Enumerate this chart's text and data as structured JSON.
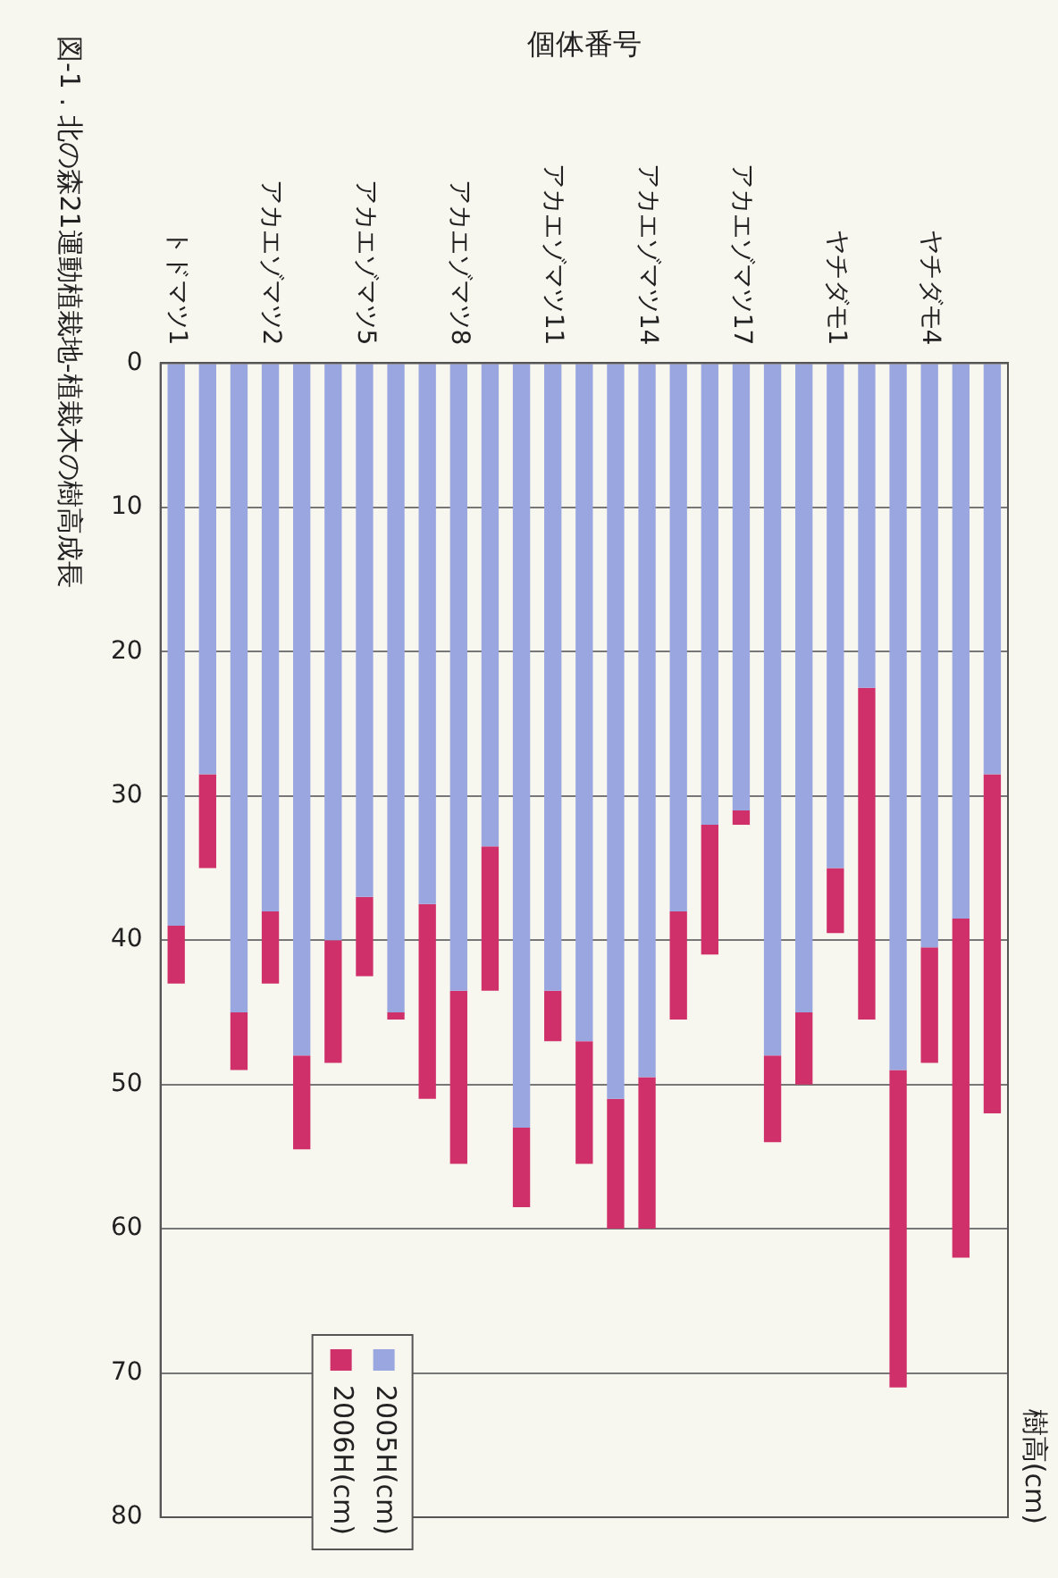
{
  "chart_data": {
    "type": "bar",
    "title": "図-1 . 北の森21運動植栽地-植栽木の樹高成長",
    "xlabel": "個体番号",
    "ylabel": "樹高(cm)",
    "categories": [
      "トドマツ1",
      null,
      null,
      "アカエゾマツ2",
      null,
      null,
      "アカエゾマツ5",
      null,
      null,
      "アカエゾマツ8",
      null,
      null,
      "アカエゾマツ11",
      null,
      null,
      "アカエゾマツ14",
      null,
      null,
      "アカエゾマツ17",
      null,
      null,
      "ヤチダモ1",
      null,
      null,
      "ヤチダモ4",
      null,
      null
    ],
    "stacked": true,
    "series": [
      {
        "name": "2005H(cm)",
        "color": "#9aa6e0",
        "values": [
          39,
          28.5,
          45,
          38,
          48,
          40,
          37,
          45,
          37.5,
          43.5,
          33.5,
          53,
          43.5,
          47,
          51,
          49.5,
          38,
          32,
          31,
          48,
          45,
          35,
          22.5,
          49,
          40.5,
          38.5,
          28.5
        ]
      },
      {
        "name": "2006H(cm)",
        "color": "#d0306a",
        "values": [
          4,
          6.5,
          4,
          5,
          6.5,
          8.5,
          5.5,
          0.5,
          13.5,
          12,
          10,
          5.5,
          3.5,
          8.5,
          9,
          10.5,
          7.5,
          9,
          1,
          6,
          5,
          4.5,
          23,
          22,
          8,
          23.5,
          23.5
        ]
      }
    ],
    "ylim": [
      80,
      0
    ],
    "yticks": [
      0,
      10,
      20,
      30,
      40,
      50,
      60,
      70,
      80
    ],
    "grid": "y",
    "legend": "bottom left"
  }
}
